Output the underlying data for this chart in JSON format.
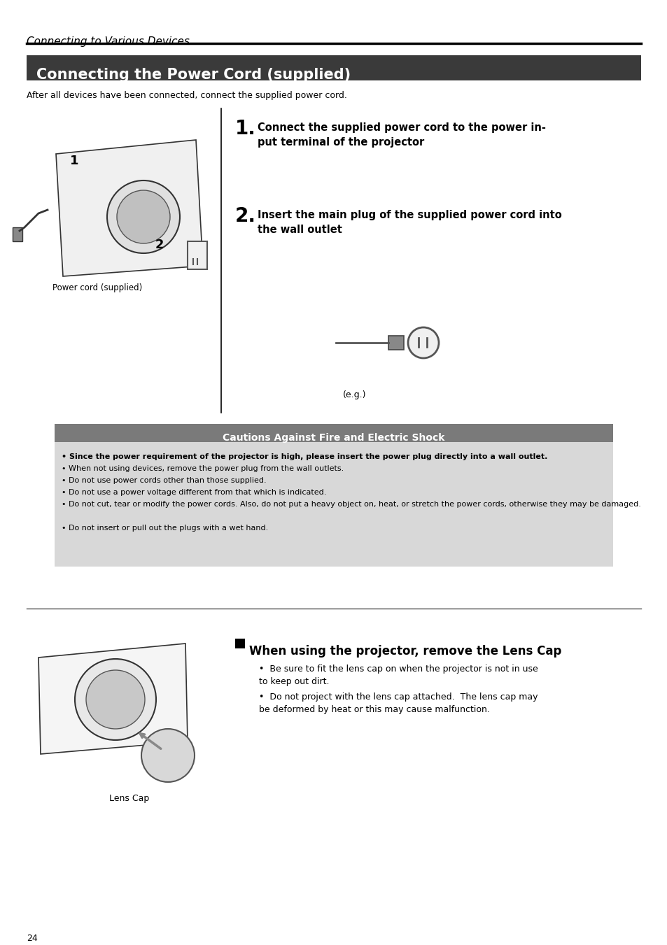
{
  "page_bg": "#ffffff",
  "page_num": "24",
  "section_italic_title": "Connecting to Various Devices",
  "header_bg": "#3a3a3a",
  "header_text": "Connecting the Power Cord (supplied)",
  "header_text_color": "#ffffff",
  "intro_text": "After all devices have been connected, connect the supplied power cord.",
  "step1_num": "1.",
  "step1_text": "Connect the supplied power cord to the power in-\nput terminal of the projector",
  "step2_num": "2.",
  "step2_text": "Insert the main plug of the supplied power cord into\nthe wall outlet",
  "eg_label": "(e.g.)",
  "caution_header_bg": "#7a7a7a",
  "caution_header_text": "Cautions Against Fire and Electric Shock",
  "caution_bg": "#d8d8d8",
  "caution_bullet0": "Since the power requirement of the projector is high, please insert the power plug directly into a wall outlet.",
  "caution_bullet1": "When not using devices, remove the power plug from the wall outlets.",
  "caution_bullet2": "Do not use power cords other than those supplied.",
  "caution_bullet3": "Do not use a power voltage different from that which is indicated.",
  "caution_bullet4": "Do not cut, tear or modify the power cords. Also, do not put a heavy object on, heat, or stretch the power cords, otherwise they may be damaged.",
  "caution_bullet5": "Do not insert or pull out the plugs with a wet hand.",
  "lens_section_title": "When using the projector, remove the Lens Cap",
  "lens_bullet1": "Be sure to fit the lens cap on when the projector is not in use\nto keep out dirt.",
  "lens_bullet2": "Do not project with the lens cap attached.  The lens cap may\nbe deformed by heat or this may cause malfunction.",
  "lens_cap_label": "Lens Cap",
  "power_cord_label": "Power cord (supplied)"
}
